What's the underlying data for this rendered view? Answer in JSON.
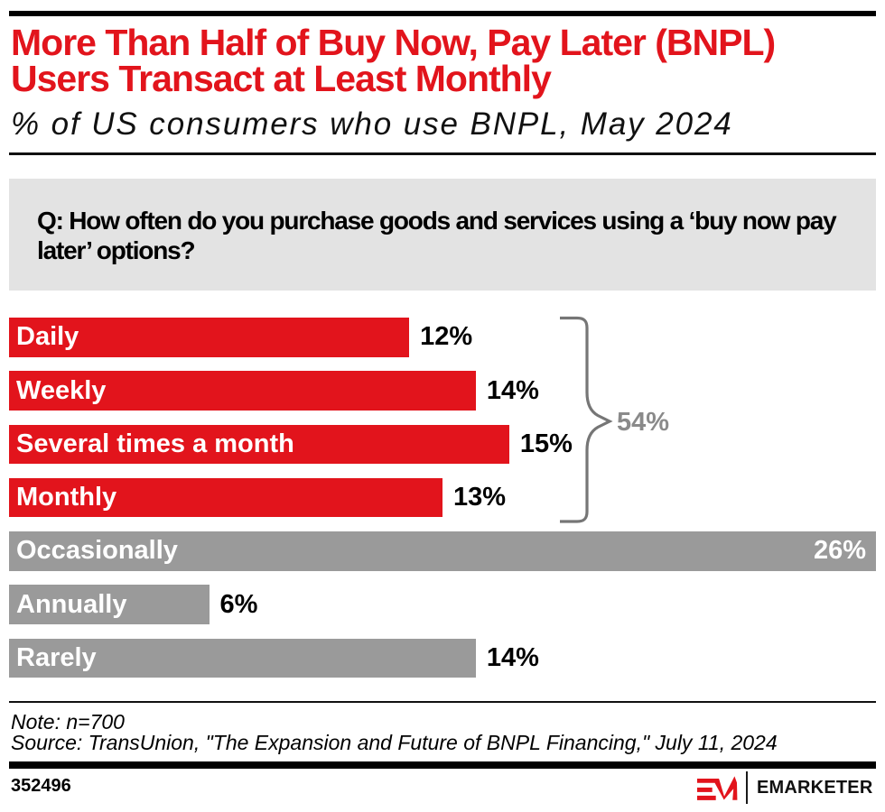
{
  "header": {
    "title": "More Than Half of Buy Now, Pay Later (BNPL) Users Transact at Least Monthly",
    "subtitle": "% of US consumers who use BNPL, May 2024"
  },
  "question": {
    "text": "Q: How often do you purchase goods and services using a ‘buy now pay later’ options?"
  },
  "chart_data": {
    "type": "bar",
    "orientation": "horizontal",
    "title": "More Than Half of Buy Now, Pay Later (BNPL) Users Transact at Least Monthly",
    "subtitle": "% of US consumers who use BNPL, May 2024",
    "unit": "%",
    "xlim": [
      0,
      26
    ],
    "categories": [
      "Daily",
      "Weekly",
      "Several times a month",
      "Monthly",
      "Occasionally",
      "Annually",
      "Rarely"
    ],
    "values": [
      12,
      14,
      15,
      13,
      26,
      6,
      14
    ],
    "rows": [
      {
        "label": "Daily",
        "value": 12,
        "display": "12%",
        "color": "red",
        "value_inside": false
      },
      {
        "label": "Weekly",
        "value": 14,
        "display": "14%",
        "color": "red",
        "value_inside": false
      },
      {
        "label": "Several times a month",
        "value": 15,
        "display": "15%",
        "color": "red",
        "value_inside": false
      },
      {
        "label": "Monthly",
        "value": 13,
        "display": "13%",
        "color": "red",
        "value_inside": false
      },
      {
        "label": "Occasionally",
        "value": 26,
        "display": "26%",
        "color": "gray",
        "value_inside": true
      },
      {
        "label": "Annually",
        "value": 6,
        "display": "6%",
        "color": "gray",
        "value_inside": false
      },
      {
        "label": "Rarely",
        "value": 14,
        "display": "14%",
        "color": "gray",
        "value_inside": false
      }
    ],
    "group_annotation": {
      "label": "54%",
      "grouped_categories": [
        "Daily",
        "Weekly",
        "Several times a month",
        "Monthly"
      ]
    }
  },
  "footer": {
    "note": "Note: n=700",
    "source": "Source: TransUnion, \"The Expansion and Future of BNPL Financing,\" July 11, 2024",
    "chart_id": "352496",
    "brand": "EMARKETER"
  },
  "colors": {
    "red": "#e2141c",
    "gray": "#9a9a9a",
    "question_bg": "#e3e3e3",
    "brace": "#767676",
    "annotation_text": "#8a8a8a"
  }
}
